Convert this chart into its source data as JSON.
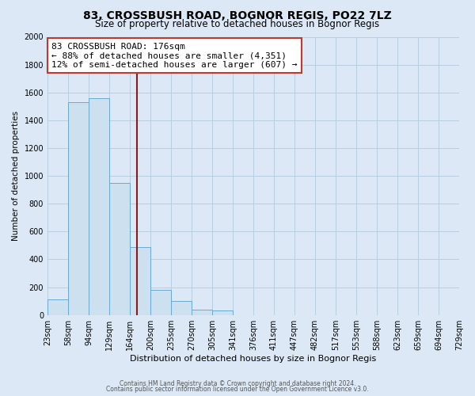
{
  "title": "83, CROSSBUSH ROAD, BOGNOR REGIS, PO22 7LZ",
  "subtitle": "Size of property relative to detached houses in Bognor Regis",
  "xlabel": "Distribution of detached houses by size in Bognor Regis",
  "ylabel": "Number of detached properties",
  "bin_labels": [
    "23sqm",
    "58sqm",
    "94sqm",
    "129sqm",
    "164sqm",
    "200sqm",
    "235sqm",
    "270sqm",
    "305sqm",
    "341sqm",
    "376sqm",
    "411sqm",
    "447sqm",
    "482sqm",
    "517sqm",
    "553sqm",
    "588sqm",
    "623sqm",
    "659sqm",
    "694sqm",
    "729sqm"
  ],
  "bar_values": [
    110,
    1530,
    1560,
    950,
    490,
    180,
    100,
    40,
    30,
    0,
    0,
    0,
    0,
    0,
    0,
    0,
    0,
    0,
    0,
    0
  ],
  "bar_color": "#cce0f0",
  "bar_edge_color": "#6aaad4",
  "vline_color": "#8b1a1a",
  "ylim": [
    0,
    2000
  ],
  "annotation_line1": "83 CROSSBUSH ROAD: 176sqm",
  "annotation_line2": "← 88% of detached houses are smaller (4,351)",
  "annotation_line3": "12% of semi-detached houses are larger (607) →",
  "annotation_box_color": "white",
  "annotation_box_edge": "#c0392b",
  "footer1": "Contains HM Land Registry data © Crown copyright and database right 2024.",
  "footer2": "Contains public sector information licensed under the Open Government Licence v3.0.",
  "background_color": "#dce8f5",
  "plot_background": "#dce8f5",
  "grid_color": "#b8cfe0",
  "title_fontsize": 10,
  "subtitle_fontsize": 8.5,
  "axis_label_fontsize": 8,
  "tick_fontsize": 7,
  "annotation_fontsize": 8,
  "ylabel_fontsize": 7.5
}
